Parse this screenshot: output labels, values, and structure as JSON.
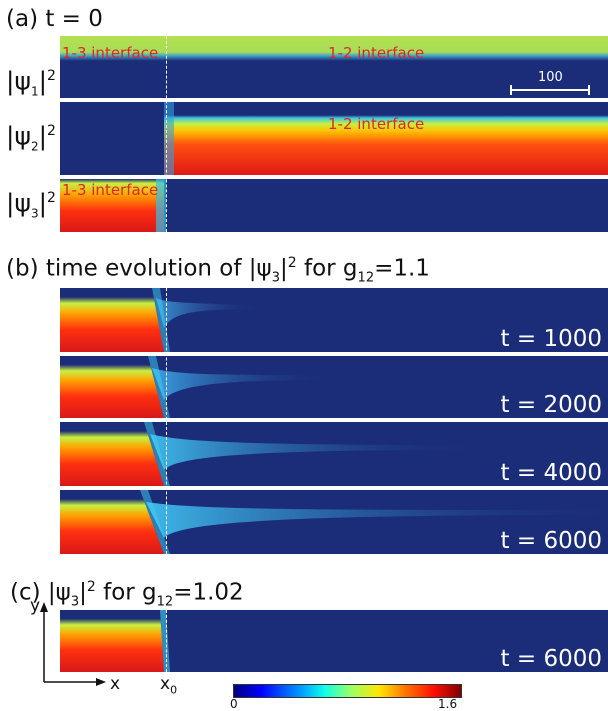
{
  "section_a": {
    "prefix": "(a) t = 0",
    "rows": [
      {
        "psi": "ψ",
        "sub": "1",
        "sup": "2"
      },
      {
        "psi": "ψ",
        "sub": "2",
        "sup": "2"
      },
      {
        "psi": "ψ",
        "sub": "3",
        "sup": "2"
      }
    ],
    "labels": {
      "interface_13_top": "1-3 interface",
      "interface_12_top": "1-2 interface",
      "interface_12_mid": "1-2 interface",
      "interface_13_bottom": "1-3 interface"
    },
    "scalebar_label": "100"
  },
  "section_b": {
    "title_pre": "(b) time evolution of",
    "psi": "ψ",
    "sub": "3",
    "sup": "2",
    "title_mid": "for g",
    "g_sub": "12",
    "title_post": "=1.1",
    "times": [
      "t = 1000",
      "t = 2000",
      "t = 4000",
      "t = 6000"
    ]
  },
  "section_c": {
    "title_pre": "(c)",
    "psi": "ψ",
    "sub": "3",
    "sup": "2",
    "title_mid": "for g",
    "g_sub": "12",
    "title_post": "=1.02",
    "time": "t = 6000",
    "axis_y": "y",
    "axis_x": "x",
    "x0_main": "x",
    "x0_sub": "0"
  },
  "colorbar": {
    "min": "0",
    "max": "1.6",
    "colors": [
      "#00007f",
      "#0000ff",
      "#00a0ff",
      "#10ffe8",
      "#a0ff60",
      "#ffe600",
      "#ff7000",
      "#ff1000",
      "#800000"
    ]
  },
  "colors": {
    "background_field": "#1b2d78",
    "interface_label": "#e0262b"
  }
}
